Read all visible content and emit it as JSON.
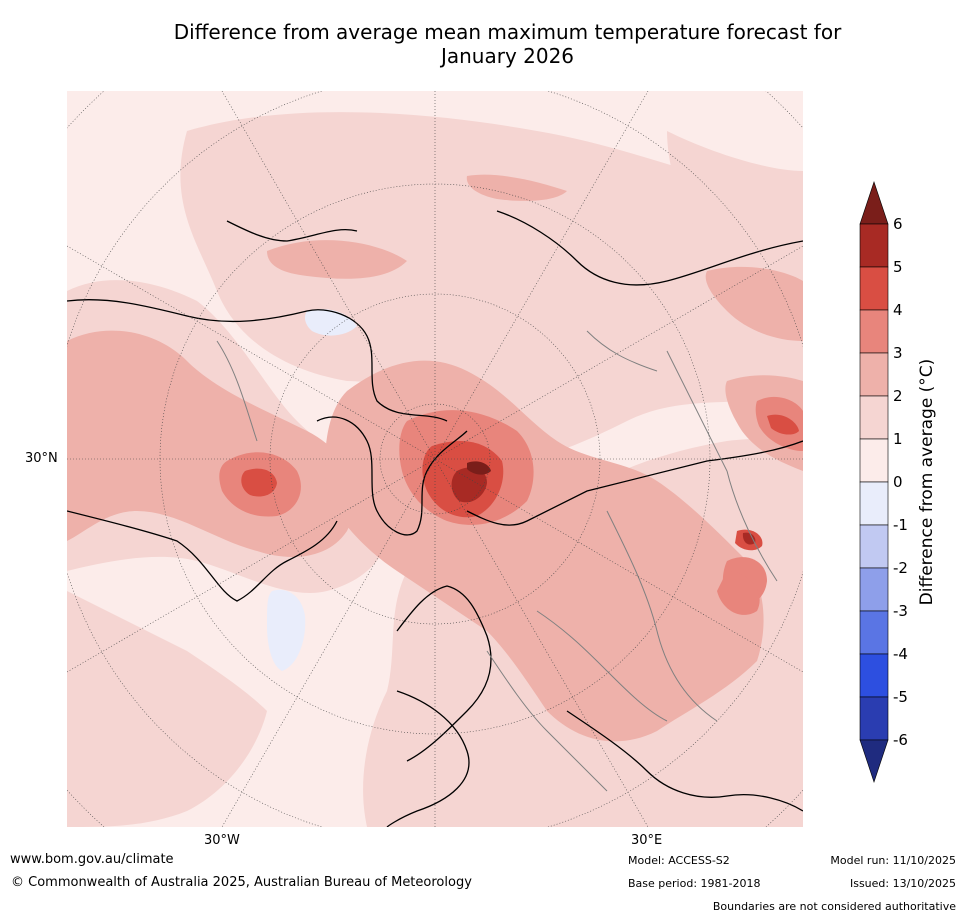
{
  "title": {
    "line1": "Difference from average mean maximum temperature forecast for",
    "line2": "January 2026"
  },
  "map": {
    "projection": "north polar stereographic",
    "lat_label": "30°N",
    "lon_labels": [
      "30°W",
      "30°E"
    ]
  },
  "colorbar": {
    "label": "Difference from average (°C)",
    "ticks": [
      "6",
      "5",
      "4",
      "3",
      "2",
      "1",
      "0",
      "-1",
      "-2",
      "-3",
      "-4",
      "-5",
      "-6"
    ],
    "colors": [
      "#a82a24",
      "#d94e43",
      "#e8857c",
      "#eeb1aa",
      "#f5d5d2",
      "#fcecea",
      "#e9edfb",
      "#c1c9f2",
      "#8e9fea",
      "#5a75e4",
      "#2d4fe0",
      "#2a3db1"
    ],
    "over_color": "#7a1e1a",
    "under_color": "#1f2b7f",
    "extend": "both"
  },
  "footer": {
    "url": "www.bom.gov.au/climate",
    "copyright": "© Commonwealth of Australia 2025, Australian Bureau of Meteorology",
    "model": "Model: ACCESS-S2",
    "base_period": "Base period: 1981-2018",
    "model_run": "Model run: 11/10/2025",
    "issued": "Issued: 13/10/2025",
    "disclaimer": "Boundaries are not considered authoritative"
  }
}
